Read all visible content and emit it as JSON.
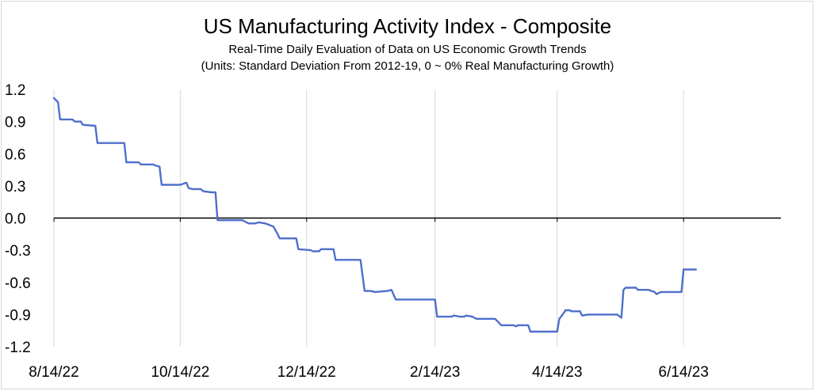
{
  "chart_data": {
    "type": "line",
    "title": "US Manufacturing Activity Index - Composite",
    "subtitle": "Real-Time Daily Evaluation of Data on US Economic Growth Trends",
    "subtitle2": "(Units: Standard Deviation From 2012-19, 0 ~ 0% Real Manufacturing Growth)",
    "xlabel": "",
    "ylabel": "",
    "x_start": "2022-08-14",
    "x_range": [
      "2022-08-14",
      "2023-07-31"
    ],
    "ylim": [
      -1.2,
      1.2
    ],
    "y_ticks": [
      1.2,
      0.9,
      0.6,
      0.3,
      0.0,
      -0.3,
      -0.6,
      -0.9,
      -1.2
    ],
    "y_tick_labels": [
      "1.2",
      "0.9",
      "0.6",
      "0.3",
      "0.0",
      "-0.3",
      "-0.6",
      "-0.9",
      "-1.2"
    ],
    "x_ticks": [
      "2022-08-14",
      "2022-10-14",
      "2022-12-14",
      "2023-02-14",
      "2023-04-14",
      "2023-06-14"
    ],
    "x_tick_labels": [
      "8/14/22",
      "10/14/22",
      "12/14/22",
      "2/14/23",
      "4/14/23",
      "6/14/23"
    ],
    "grid": "vertical",
    "line_color": "#4f6fcc",
    "series": [
      {
        "name": "",
        "points": [
          [
            "2022-08-14",
            1.12
          ],
          [
            "2022-08-16",
            1.08
          ],
          [
            "2022-08-17",
            0.92
          ],
          [
            "2022-08-23",
            0.92
          ],
          [
            "2022-08-24",
            0.9
          ],
          [
            "2022-08-27",
            0.9
          ],
          [
            "2022-08-28",
            0.87
          ],
          [
            "2022-09-03",
            0.86
          ],
          [
            "2022-09-04",
            0.7
          ],
          [
            "2022-09-17",
            0.7
          ],
          [
            "2022-09-18",
            0.52
          ],
          [
            "2022-09-24",
            0.52
          ],
          [
            "2022-09-25",
            0.5
          ],
          [
            "2022-10-01",
            0.5
          ],
          [
            "2022-10-02",
            0.49
          ],
          [
            "2022-10-04",
            0.48
          ],
          [
            "2022-10-05",
            0.31
          ],
          [
            "2022-10-14",
            0.31
          ],
          [
            "2022-10-17",
            0.33
          ],
          [
            "2022-10-18",
            0.28
          ],
          [
            "2022-10-20",
            0.27
          ],
          [
            "2022-10-24",
            0.27
          ],
          [
            "2022-10-25",
            0.25
          ],
          [
            "2022-10-29",
            0.24
          ],
          [
            "2022-10-31",
            0.24
          ],
          [
            "2022-11-01",
            -0.02
          ],
          [
            "2022-11-13",
            -0.02
          ],
          [
            "2022-11-16",
            -0.05
          ],
          [
            "2022-11-19",
            -0.05
          ],
          [
            "2022-11-21",
            -0.04
          ],
          [
            "2022-11-24",
            -0.05
          ],
          [
            "2022-11-28",
            -0.08
          ],
          [
            "2022-11-30",
            -0.15
          ],
          [
            "2022-12-01",
            -0.19
          ],
          [
            "2022-12-09",
            -0.19
          ],
          [
            "2022-12-10",
            -0.29
          ],
          [
            "2022-12-16",
            -0.3
          ],
          [
            "2022-12-17",
            -0.31
          ],
          [
            "2022-12-20",
            -0.31
          ],
          [
            "2022-12-21",
            -0.29
          ],
          [
            "2022-12-27",
            -0.29
          ],
          [
            "2022-12-28",
            -0.39
          ],
          [
            "2023-01-09",
            -0.39
          ],
          [
            "2023-01-11",
            -0.68
          ],
          [
            "2023-01-14",
            -0.68
          ],
          [
            "2023-01-16",
            -0.69
          ],
          [
            "2023-01-22",
            -0.68
          ],
          [
            "2023-01-24",
            -0.67
          ],
          [
            "2023-01-26",
            -0.76
          ],
          [
            "2023-02-14",
            -0.76
          ],
          [
            "2023-02-15",
            -0.92
          ],
          [
            "2023-02-22",
            -0.92
          ],
          [
            "2023-02-23",
            -0.91
          ],
          [
            "2023-02-26",
            -0.92
          ],
          [
            "2023-02-28",
            -0.92
          ],
          [
            "2023-03-01",
            -0.91
          ],
          [
            "2023-03-04",
            -0.92
          ],
          [
            "2023-03-06",
            -0.94
          ],
          [
            "2023-03-15",
            -0.94
          ],
          [
            "2023-03-18",
            -1.0
          ],
          [
            "2023-03-24",
            -1.0
          ],
          [
            "2023-03-25",
            -1.01
          ],
          [
            "2023-03-26",
            -1.0
          ],
          [
            "2023-03-31",
            -1.0
          ],
          [
            "2023-04-01",
            -1.06
          ],
          [
            "2023-04-08",
            -1.06
          ],
          [
            "2023-04-14",
            -1.06
          ],
          [
            "2023-04-15",
            -0.94
          ],
          [
            "2023-04-17",
            -0.89
          ],
          [
            "2023-04-18",
            -0.86
          ],
          [
            "2023-04-20",
            -0.86
          ],
          [
            "2023-04-21",
            -0.87
          ],
          [
            "2023-04-25",
            -0.87
          ],
          [
            "2023-04-26",
            -0.91
          ],
          [
            "2023-04-29",
            -0.9
          ],
          [
            "2023-05-13",
            -0.9
          ],
          [
            "2023-05-15",
            -0.93
          ],
          [
            "2023-05-16",
            -0.67
          ],
          [
            "2023-05-17",
            -0.65
          ],
          [
            "2023-05-22",
            -0.65
          ],
          [
            "2023-05-23",
            -0.67
          ],
          [
            "2023-05-28",
            -0.67
          ],
          [
            "2023-05-31",
            -0.69
          ],
          [
            "2023-06-01",
            -0.71
          ],
          [
            "2023-06-03",
            -0.69
          ],
          [
            "2023-06-05",
            -0.69
          ],
          [
            "2023-06-13",
            -0.69
          ],
          [
            "2023-06-14",
            -0.48
          ],
          [
            "2023-06-20",
            -0.48
          ]
        ]
      }
    ]
  }
}
